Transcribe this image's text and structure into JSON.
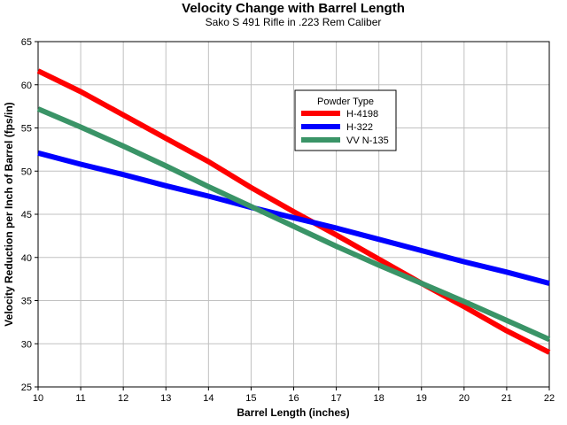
{
  "chart_data": {
    "type": "line",
    "title": "Velocity Change with Barrel Length",
    "subtitle": "Sako S 491 Rifle in .223 Rem Caliber",
    "xlabel": "Barrel Length (inches)",
    "ylabel": "Velocity Reduction per Inch of Barrel (fps/in)",
    "xlim": [
      10,
      22
    ],
    "ylim": [
      25,
      65
    ],
    "xticks": [
      10,
      11,
      12,
      13,
      14,
      15,
      16,
      17,
      18,
      19,
      20,
      21,
      22
    ],
    "yticks": [
      25,
      30,
      35,
      40,
      45,
      50,
      55,
      60,
      65
    ],
    "grid": true,
    "legend": {
      "title": "Powder Type",
      "position": "top-center"
    },
    "x": [
      10,
      11,
      12,
      13,
      14,
      15,
      16,
      17,
      18,
      19,
      20,
      21,
      22
    ],
    "series": [
      {
        "name": "H-4198",
        "color": "#ff0000",
        "values": [
          61.6,
          59.2,
          56.5,
          53.8,
          51.1,
          48.1,
          45.3,
          42.6,
          39.8,
          37.0,
          34.3,
          31.5,
          29.0
        ]
      },
      {
        "name": "H-322",
        "color": "#0000ff",
        "values": [
          52.1,
          50.8,
          49.6,
          48.3,
          47.1,
          45.8,
          44.6,
          43.4,
          42.1,
          40.8,
          39.5,
          38.3,
          37.0
        ]
      },
      {
        "name": "VV N-135",
        "color": "#3a9467",
        "values": [
          57.2,
          55.1,
          52.9,
          50.6,
          48.2,
          45.9,
          43.6,
          41.3,
          39.1,
          37.0,
          34.9,
          32.7,
          30.5
        ]
      }
    ]
  }
}
